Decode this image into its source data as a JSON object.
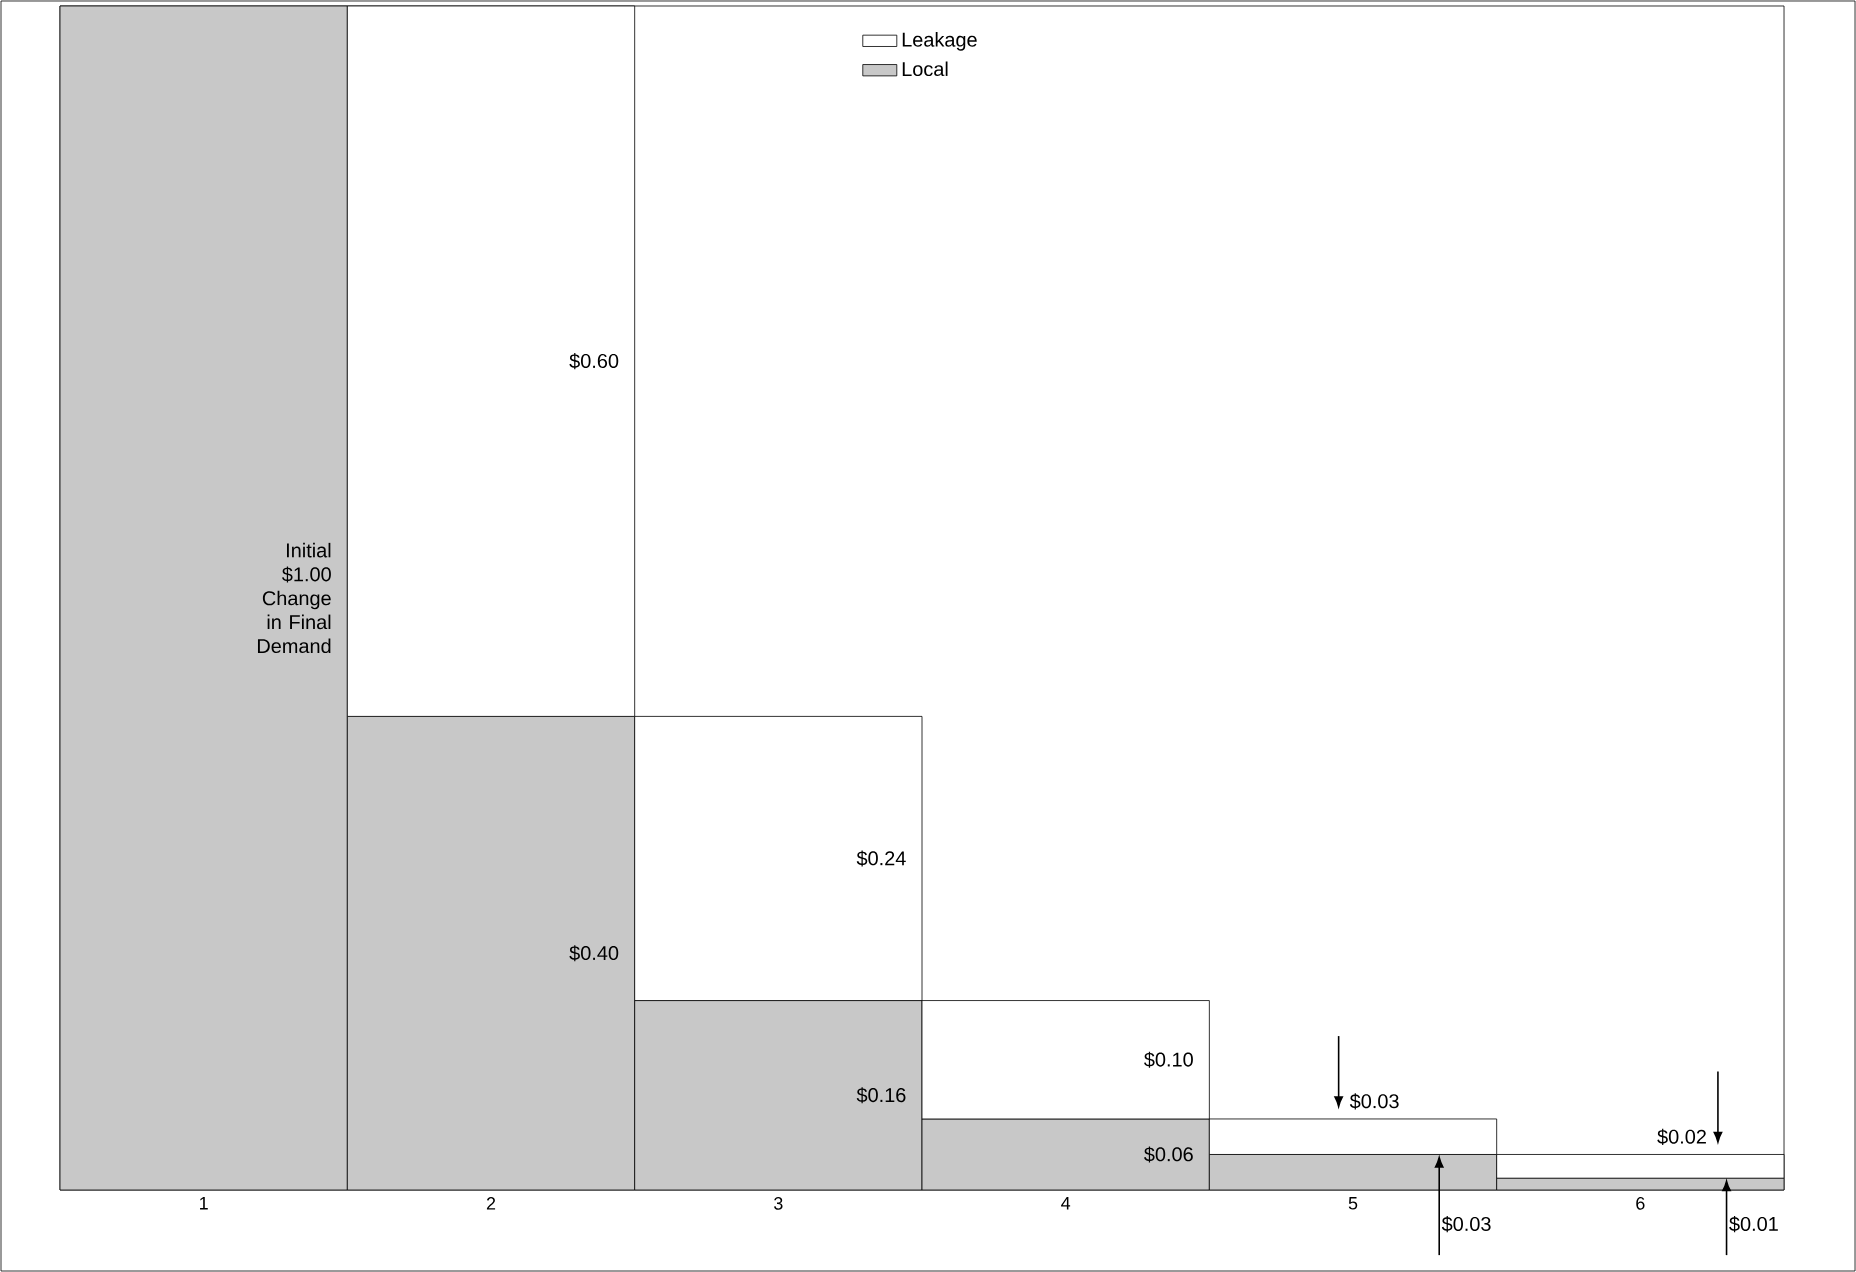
{
  "chart_data": {
    "type": "bar",
    "stacked": true,
    "categories": [
      "1",
      "2",
      "3",
      "4",
      "5",
      "6"
    ],
    "ylim": [
      0,
      1
    ],
    "tick_labels": "x",
    "legend": "top",
    "series": [
      {
        "name": "Local",
        "color": "#c8c8c8",
        "values": [
          1.0,
          0.4,
          0.16,
          0.06,
          0.03,
          0.01
        ],
        "value_labels": [
          "Initial $1.00 Change in Final Demand",
          "$0.40",
          "$0.16",
          "$0.06",
          "$0.03",
          "$0.01"
        ]
      },
      {
        "name": "Leakage",
        "color": "#ffffff",
        "values": [
          null,
          0.6,
          0.24,
          0.1,
          0.03,
          0.02
        ],
        "value_labels": [
          null,
          "$0.60",
          "$0.24",
          "$0.10",
          "$0.03",
          "$0.02"
        ]
      }
    ]
  }
}
